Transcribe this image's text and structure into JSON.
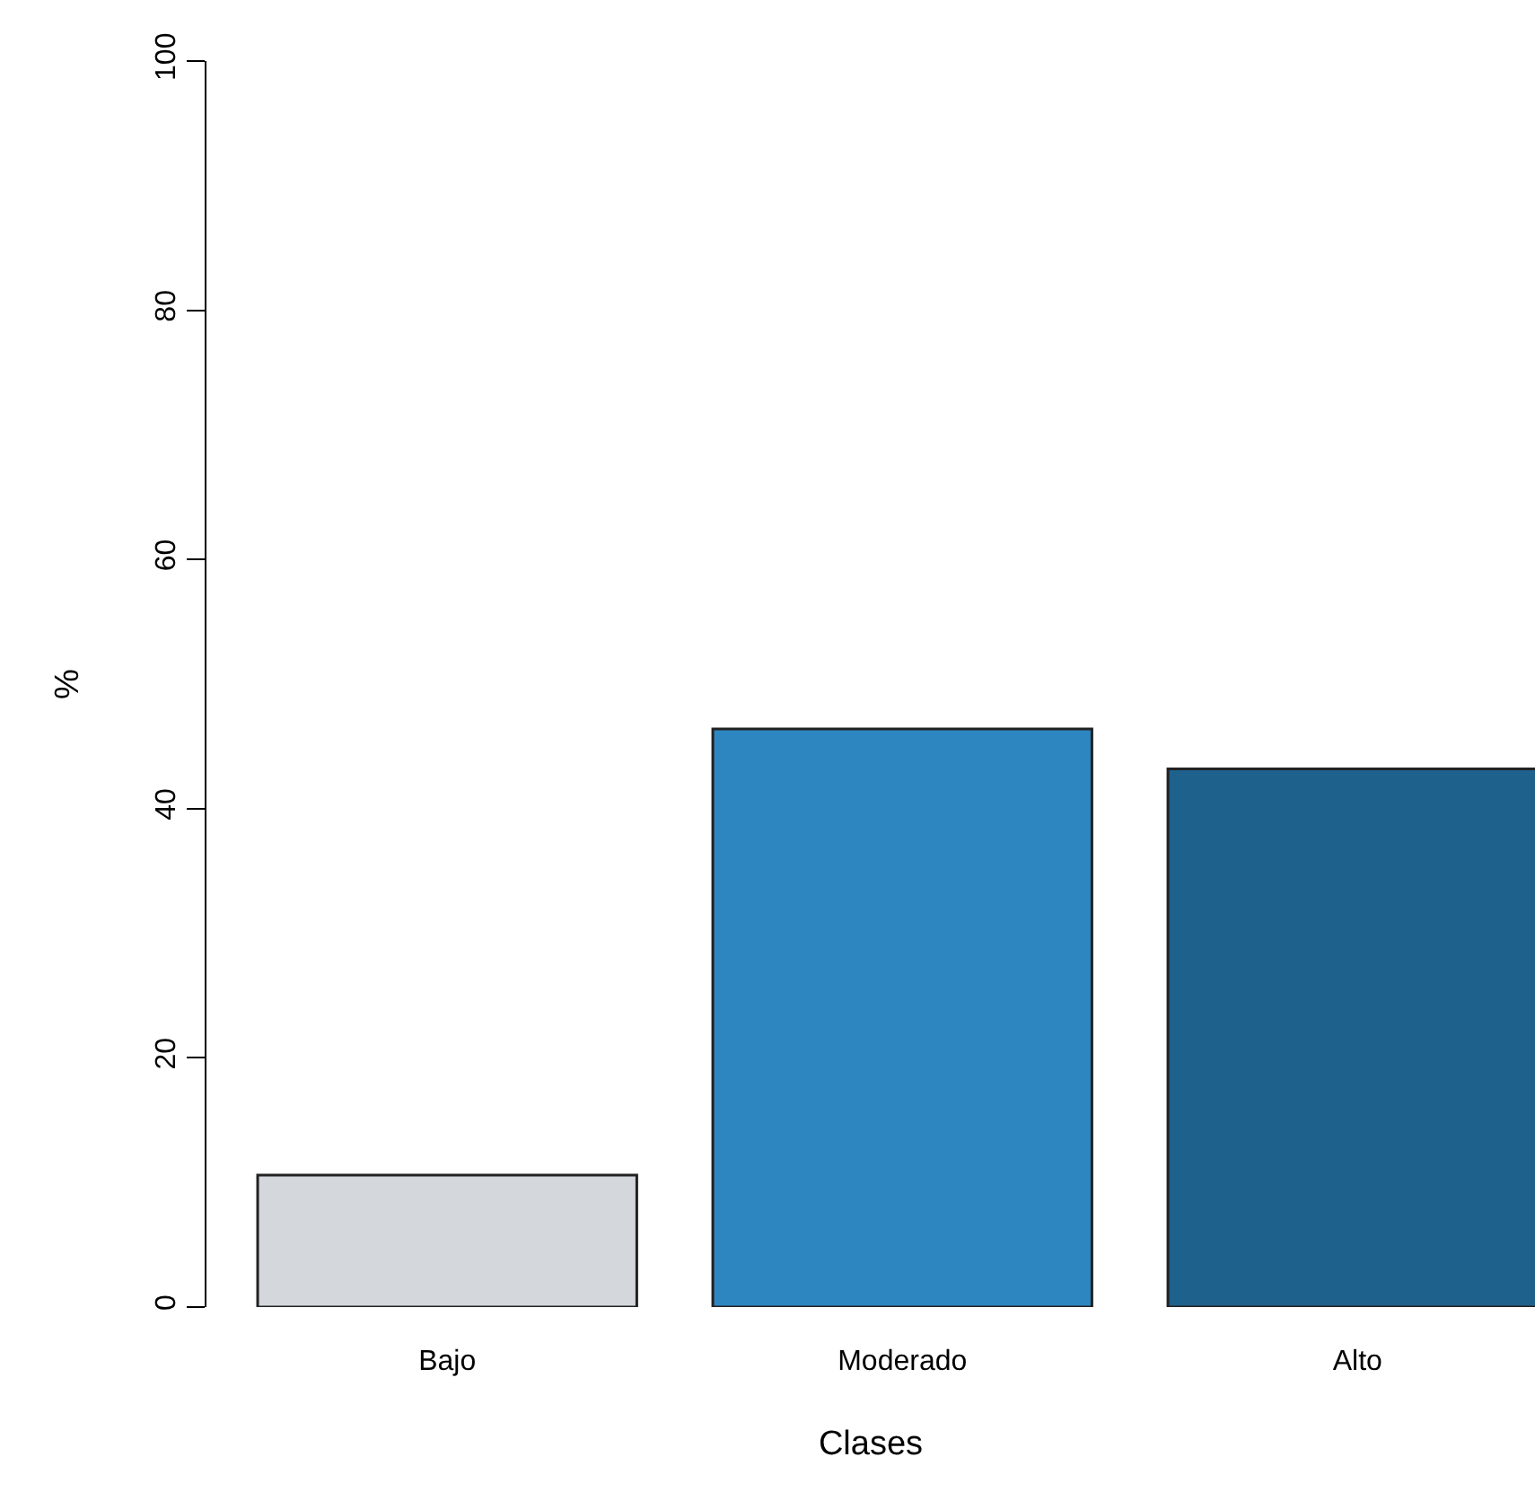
{
  "chart_data": {
    "type": "bar",
    "xlabel": "Clases",
    "ylabel": "%",
    "categories": [
      "Bajo",
      "Moderado",
      "Alto"
    ],
    "values": [
      10.6,
      46.4,
      43.2
    ],
    "colors": [
      "#d4d8dc",
      "#2e86c1",
      "#1f618d"
    ],
    "ylim": [
      0,
      100
    ],
    "yticks": [
      0,
      20,
      40,
      60,
      80,
      100
    ]
  }
}
